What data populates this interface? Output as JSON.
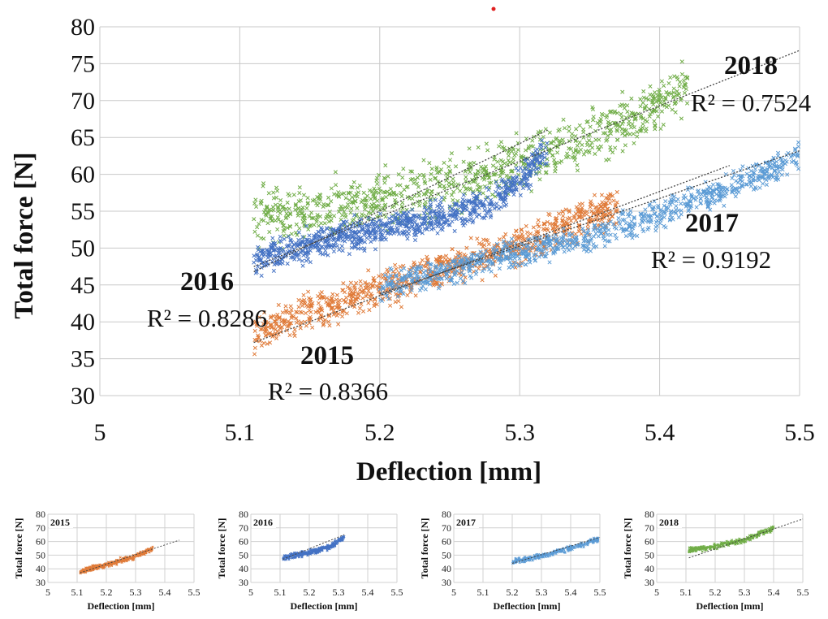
{
  "main_chart": {
    "chart_data": {
      "type": "scatter",
      "xlabel": "Deflection [mm]",
      "ylabel": "Total force [N]",
      "xlim": [
        5,
        5.5
      ],
      "ylim": [
        30,
        80
      ],
      "x_ticks": [
        "5",
        "5.1",
        "5.2",
        "5.3",
        "5.4",
        "5.5"
      ],
      "y_ticks": [
        "30",
        "35",
        "40",
        "45",
        "50",
        "55",
        "60",
        "65",
        "70",
        "75",
        "80"
      ],
      "grid": true,
      "series": [
        {
          "name": "2015",
          "color": "#e07b39",
          "r2_label": "R² = 0.8366",
          "trend": [
            [
              5.11,
              37.2
            ],
            [
              5.45,
              61.2
            ]
          ],
          "cloud": [
            [
              5.11,
              38.5
            ],
            [
              5.15,
              41.5
            ],
            [
              5.2,
              44.5
            ],
            [
              5.25,
              47.5
            ],
            [
              5.3,
              50.5
            ],
            [
              5.35,
              54
            ],
            [
              5.37,
              56
            ]
          ]
        },
        {
          "name": "2016",
          "color": "#4472c4",
          "r2_label": "R² = 0.8286",
          "trend": [
            [
              5.11,
              46.8
            ],
            [
              5.32,
              66
            ]
          ],
          "cloud": [
            [
              5.11,
              48.5
            ],
            [
              5.13,
              49.5
            ],
            [
              5.15,
              50.5
            ],
            [
              5.17,
              51.5
            ],
            [
              5.2,
              52.5
            ],
            [
              5.24,
              54
            ],
            [
              5.28,
              56
            ],
            [
              5.32,
              63
            ]
          ]
        },
        {
          "name": "2017",
          "color": "#5b9bd5",
          "r2_label": "R² = 0.9192",
          "trend": [
            [
              5.2,
              43.8
            ],
            [
              5.5,
              63.2
            ]
          ],
          "cloud": [
            [
              5.2,
              44.5
            ],
            [
              5.25,
              47
            ],
            [
              5.3,
              49.5
            ],
            [
              5.35,
              51.5
            ],
            [
              5.4,
              54.5
            ],
            [
              5.45,
              58
            ],
            [
              5.5,
              62.5
            ]
          ]
        },
        {
          "name": "2018",
          "color": "#70ad47",
          "r2_label": "R² = 0.7524",
          "trend": [
            [
              5.11,
              47.5
            ],
            [
              5.5,
              76.8
            ]
          ],
          "cloud": [
            [
              5.11,
              53.5
            ],
            [
              5.15,
              55
            ],
            [
              5.2,
              56.5
            ],
            [
              5.25,
              58.5
            ],
            [
              5.3,
              61.5
            ],
            [
              5.35,
              64.5
            ],
            [
              5.4,
              69.5
            ],
            [
              5.42,
              71.5
            ]
          ]
        }
      ]
    }
  },
  "mini_charts": [
    {
      "tag": "2015",
      "color": "#e07b39",
      "xlabel": "Deflection [mm]",
      "ylabel": "Total force [N]",
      "x_ticks": [
        "5",
        "5.1",
        "5.2",
        "5.3",
        "5.4",
        "5.5"
      ],
      "y_ticks": [
        "30",
        "40",
        "50",
        "60",
        "70",
        "80"
      ],
      "xlim": [
        5,
        5.5
      ],
      "ylim": [
        30,
        80
      ],
      "cloud": [
        [
          5.11,
          38
        ],
        [
          5.2,
          43
        ],
        [
          5.3,
          49
        ],
        [
          5.36,
          55
        ]
      ],
      "trend": [
        [
          5.11,
          37
        ],
        [
          5.45,
          61
        ]
      ]
    },
    {
      "tag": "2016",
      "color": "#4472c4",
      "xlabel": "Deflection [mm]",
      "ylabel": "Total force [N]",
      "x_ticks": [
        "5",
        "5.1",
        "5.2",
        "5.3",
        "5.4",
        "5.5"
      ],
      "y_ticks": [
        "30",
        "40",
        "50",
        "60",
        "70",
        "80"
      ],
      "xlim": [
        5,
        5.5
      ],
      "ylim": [
        30,
        80
      ],
      "cloud": [
        [
          5.11,
          48
        ],
        [
          5.2,
          52
        ],
        [
          5.27,
          56
        ],
        [
          5.32,
          63
        ]
      ],
      "trend": [
        [
          5.11,
          47
        ],
        [
          5.32,
          65
        ]
      ]
    },
    {
      "tag": "2017",
      "color": "#5b9bd5",
      "xlabel": "Deflection [mm]",
      "ylabel": "Total force [N]",
      "x_ticks": [
        "5",
        "5.1",
        "5.2",
        "5.3",
        "5.4",
        "5.5"
      ],
      "y_ticks": [
        "30",
        "40",
        "50",
        "60",
        "70",
        "80"
      ],
      "xlim": [
        5,
        5.5
      ],
      "ylim": [
        30,
        80
      ],
      "cloud": [
        [
          5.2,
          45
        ],
        [
          5.3,
          49.5
        ],
        [
          5.4,
          55
        ],
        [
          5.5,
          62
        ]
      ],
      "trend": [
        [
          5.2,
          44
        ],
        [
          5.5,
          63
        ]
      ]
    },
    {
      "tag": "2018",
      "color": "#70ad47",
      "xlabel": "Deflection [mm]",
      "ylabel": "Total force [N]",
      "x_ticks": [
        "5",
        "5.1",
        "5.2",
        "5.3",
        "5.4",
        "5.5"
      ],
      "y_ticks": [
        "30",
        "40",
        "50",
        "60",
        "70",
        "80"
      ],
      "xlim": [
        5,
        5.5
      ],
      "ylim": [
        30,
        80
      ],
      "cloud": [
        [
          5.11,
          53.5
        ],
        [
          5.2,
          56.5
        ],
        [
          5.3,
          61
        ],
        [
          5.4,
          70
        ]
      ],
      "trend": [
        [
          5.11,
          48
        ],
        [
          5.5,
          76.5
        ]
      ]
    }
  ]
}
